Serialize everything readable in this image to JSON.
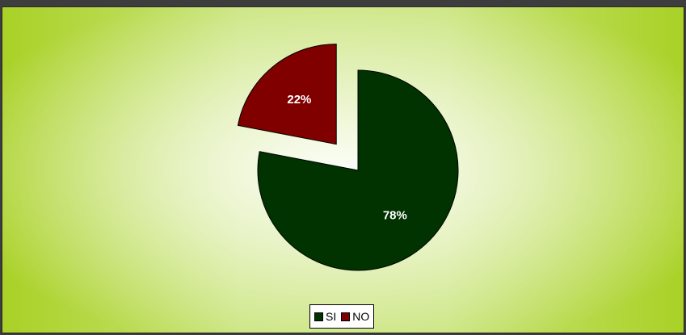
{
  "chart_data": {
    "type": "pie",
    "categories": [
      "SI",
      "NO"
    ],
    "values": [
      78,
      22
    ],
    "labels": [
      "78%",
      "22%"
    ],
    "colors": [
      "#003300",
      "#800000"
    ],
    "exploded": [
      "NO"
    ],
    "title": "",
    "legend_position": "bottom-center"
  },
  "legend": {
    "items": [
      {
        "label": "SI",
        "color": "#003300"
      },
      {
        "label": "NO",
        "color": "#800000"
      }
    ]
  }
}
